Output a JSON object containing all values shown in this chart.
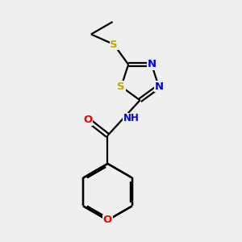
{
  "background_color": "#efefef",
  "atom_colors": {
    "C": "#000000",
    "N": "#0000ee",
    "O": "#ee0000",
    "S": "#bbaa00",
    "H": "#777777"
  },
  "figsize": [
    3.0,
    3.0
  ],
  "dpi": 100
}
